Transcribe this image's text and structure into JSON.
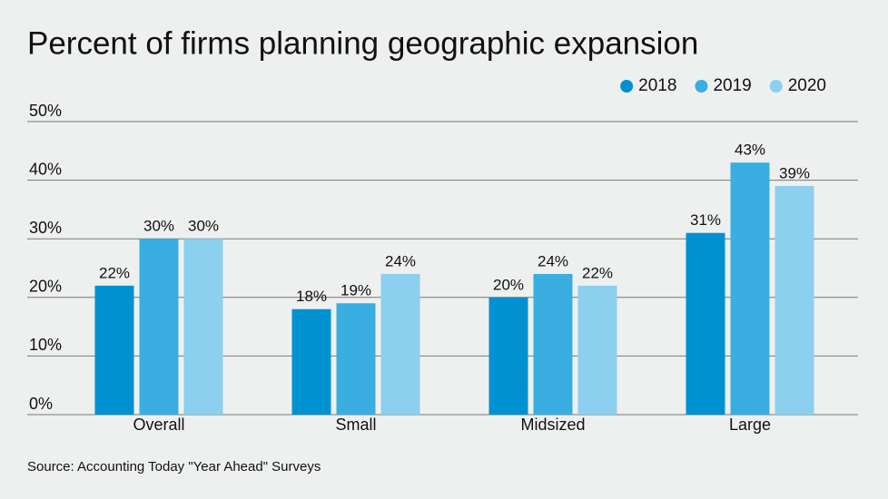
{
  "chart_data": {
    "type": "bar",
    "title": "Percent of firms planning geographic expansion",
    "source": "Source: Accounting Today \"Year Ahead\" Surveys",
    "categories": [
      "Overall",
      "Small",
      "Midsized",
      "Large"
    ],
    "series": [
      {
        "name": "2018",
        "color": "#0091d0",
        "values": [
          22,
          18,
          20,
          31
        ],
        "value_labels": [
          "22%",
          "18%",
          "20%",
          "31%"
        ]
      },
      {
        "name": "2019",
        "color": "#3aaee0",
        "values": [
          30,
          19,
          24,
          43
        ],
        "value_labels": [
          "30%",
          "19%",
          "24%",
          "43%"
        ]
      },
      {
        "name": "2020",
        "color": "#8ccfee",
        "values": [
          30,
          24,
          22,
          39
        ],
        "value_labels": [
          "30%",
          "24%",
          "22%",
          "39%"
        ]
      }
    ],
    "ylim": [
      0,
      50
    ],
    "yticks": [
      {
        "value": 0,
        "label": "0%"
      },
      {
        "value": 10,
        "label": "10%"
      },
      {
        "value": 20,
        "label": "20%"
      },
      {
        "value": 30,
        "label": "30%"
      },
      {
        "value": 40,
        "label": "40%"
      },
      {
        "value": 50,
        "label": "50%"
      }
    ],
    "grid": true,
    "legend": "top-right"
  }
}
